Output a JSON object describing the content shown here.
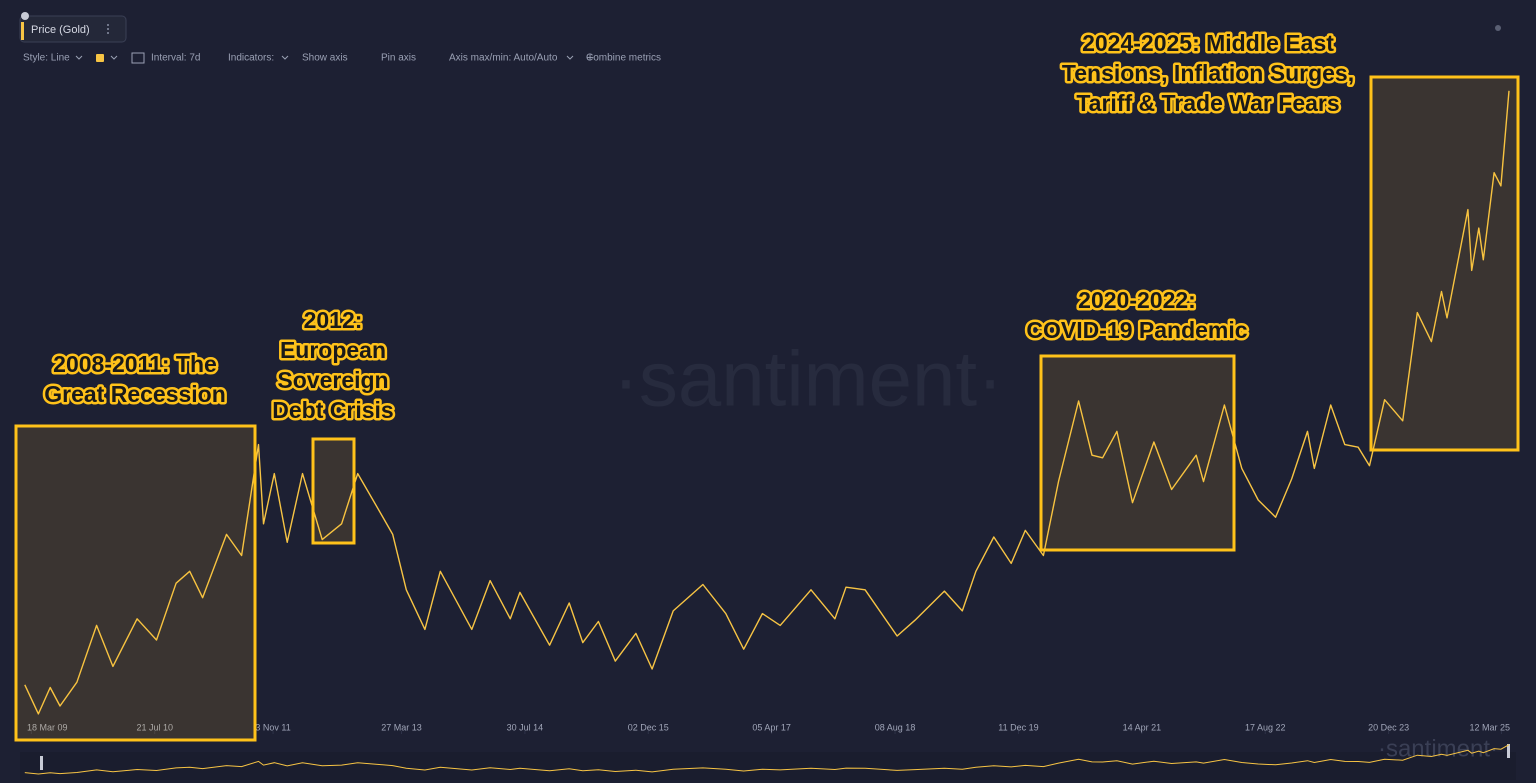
{
  "toolbar": {
    "style": "Style: Line",
    "interval": "Interval: 7d",
    "indicators": "Indicators:",
    "show_axis": "Show axis",
    "pin_axis": "Pin axis",
    "axis_range": "Axis max/min: Auto/Auto",
    "combine": "Combine metrics"
  },
  "watermark": "·santiment·",
  "chart_data": {
    "type": "line",
    "x": [
      "2009-02-20",
      "2009-04-15",
      "2009-06-01",
      "2009-07-10",
      "2009-09-15",
      "2009-12-02",
      "2010-02-05",
      "2010-05-12",
      "2010-07-28",
      "2010-10-14",
      "2010-12-07",
      "2011-01-27",
      "2011-05-02",
      "2011-07-01",
      "2011-09-06",
      "2011-09-26",
      "2011-11-08",
      "2011-12-29",
      "2012-02-28",
      "2012-05-16",
      "2012-08-01",
      "2012-10-04",
      "2012-12-28",
      "2013-02-20",
      "2013-04-15",
      "2013-06-28",
      "2013-08-28",
      "2013-12-31",
      "2014-03-14",
      "2014-06-02",
      "2014-07-10",
      "2014-11-05",
      "2015-01-22",
      "2015-03-17",
      "2015-05-18",
      "2015-07-24",
      "2015-10-14",
      "2015-12-17",
      "2016-03-10",
      "2016-07-06",
      "2016-10-05",
      "2016-12-15",
      "2017-02-27",
      "2017-05-09",
      "2017-09-08",
      "2017-12-12",
      "2018-01-25",
      "2018-04-11",
      "2018-08-16",
      "2018-10-26",
      "2019-02-20",
      "2019-05-02",
      "2019-06-25",
      "2019-09-04",
      "2019-11-12",
      "2020-01-07",
      "2020-03-19",
      "2020-05-18",
      "2020-08-06",
      "2020-09-28",
      "2020-11-09",
      "2021-01-05",
      "2021-03-08",
      "2021-06-01",
      "2021-08-10",
      "2021-11-16",
      "2021-12-15",
      "2022-03-08",
      "2022-05-16",
      "2022-07-20",
      "2022-09-27",
      "2022-11-30",
      "2023-02-01",
      "2023-02-28",
      "2023-05-04",
      "2023-06-29",
      "2023-08-21",
      "2023-10-05",
      "2023-12-04",
      "2024-02-14",
      "2024-04-12",
      "2024-06-07",
      "2024-07-17",
      "2024-08-08",
      "2024-10-30",
      "2024-11-14",
      "2024-12-12",
      "2024-12-30",
      "2025-02-11",
      "2025-03-10",
      "2025-04-11"
    ],
    "series": [
      {
        "name": "Price (Gold)",
        "color": "#f7c444",
        "values": [
          990,
          880,
          980,
          910,
          1000,
          1215,
          1060,
          1240,
          1160,
          1375,
          1420,
          1320,
          1560,
          1480,
          1900,
          1600,
          1790,
          1530,
          1790,
          1540,
          1600,
          1790,
          1650,
          1560,
          1350,
          1200,
          1420,
          1200,
          1385,
          1240,
          1340,
          1140,
          1300,
          1150,
          1230,
          1080,
          1185,
          1050,
          1270,
          1370,
          1260,
          1125,
          1260,
          1215,
          1350,
          1240,
          1360,
          1350,
          1175,
          1235,
          1345,
          1270,
          1420,
          1550,
          1450,
          1575,
          1480,
          1760,
          2065,
          1860,
          1850,
          1950,
          1680,
          1910,
          1730,
          1860,
          1760,
          2050,
          1810,
          1690,
          1625,
          1770,
          1950,
          1810,
          2050,
          1900,
          1890,
          1820,
          2070,
          1990,
          2400,
          2290,
          2480,
          2380,
          2790,
          2560,
          2720,
          2600,
          2930,
          2880,
          3240
        ]
      }
    ],
    "xlim": [
      "2009-02-01",
      "2025-04-15"
    ],
    "xticks": [
      {
        "value": "2009-03-18",
        "label": "18 Mar 09"
      },
      {
        "value": "2010-07-21",
        "label": "21 Jul 10"
      },
      {
        "value": "2011-11-03",
        "label": "3 Nov 11"
      },
      {
        "value": "2013-03-27",
        "label": "27 Mar 13"
      },
      {
        "value": "2014-07-30",
        "label": "30 Jul 14"
      },
      {
        "value": "2015-12-02",
        "label": "02 Dec 15"
      },
      {
        "value": "2017-04-05",
        "label": "05 Apr 17"
      },
      {
        "value": "2018-08-08",
        "label": "08 Aug 18"
      },
      {
        "value": "2019-12-11",
        "label": "11 Dec 19"
      },
      {
        "value": "2021-04-14",
        "label": "14 Apr 21"
      },
      {
        "value": "2022-08-17",
        "label": "17 Aug 22"
      },
      {
        "value": "2023-12-20",
        "label": "20 Dec 23"
      },
      {
        "value": "2025-03-12",
        "label": "12 Mar 25"
      }
    ],
    "ylim": [
      800,
      3300
    ],
    "annotations": [
      {
        "lines": [
          "2008-2011: The",
          "Great Recession"
        ]
      },
      {
        "lines": [
          "2012:",
          "European",
          "Sovereign",
          "Debt Crisis"
        ]
      },
      {
        "lines": [
          "2020-2022:",
          "COVID-19 Pandemic"
        ]
      },
      {
        "lines": [
          "2024-2025: Middle East",
          "Tensions, Inflation Surges,",
          "Tariff & Trade War Fears"
        ]
      }
    ]
  }
}
